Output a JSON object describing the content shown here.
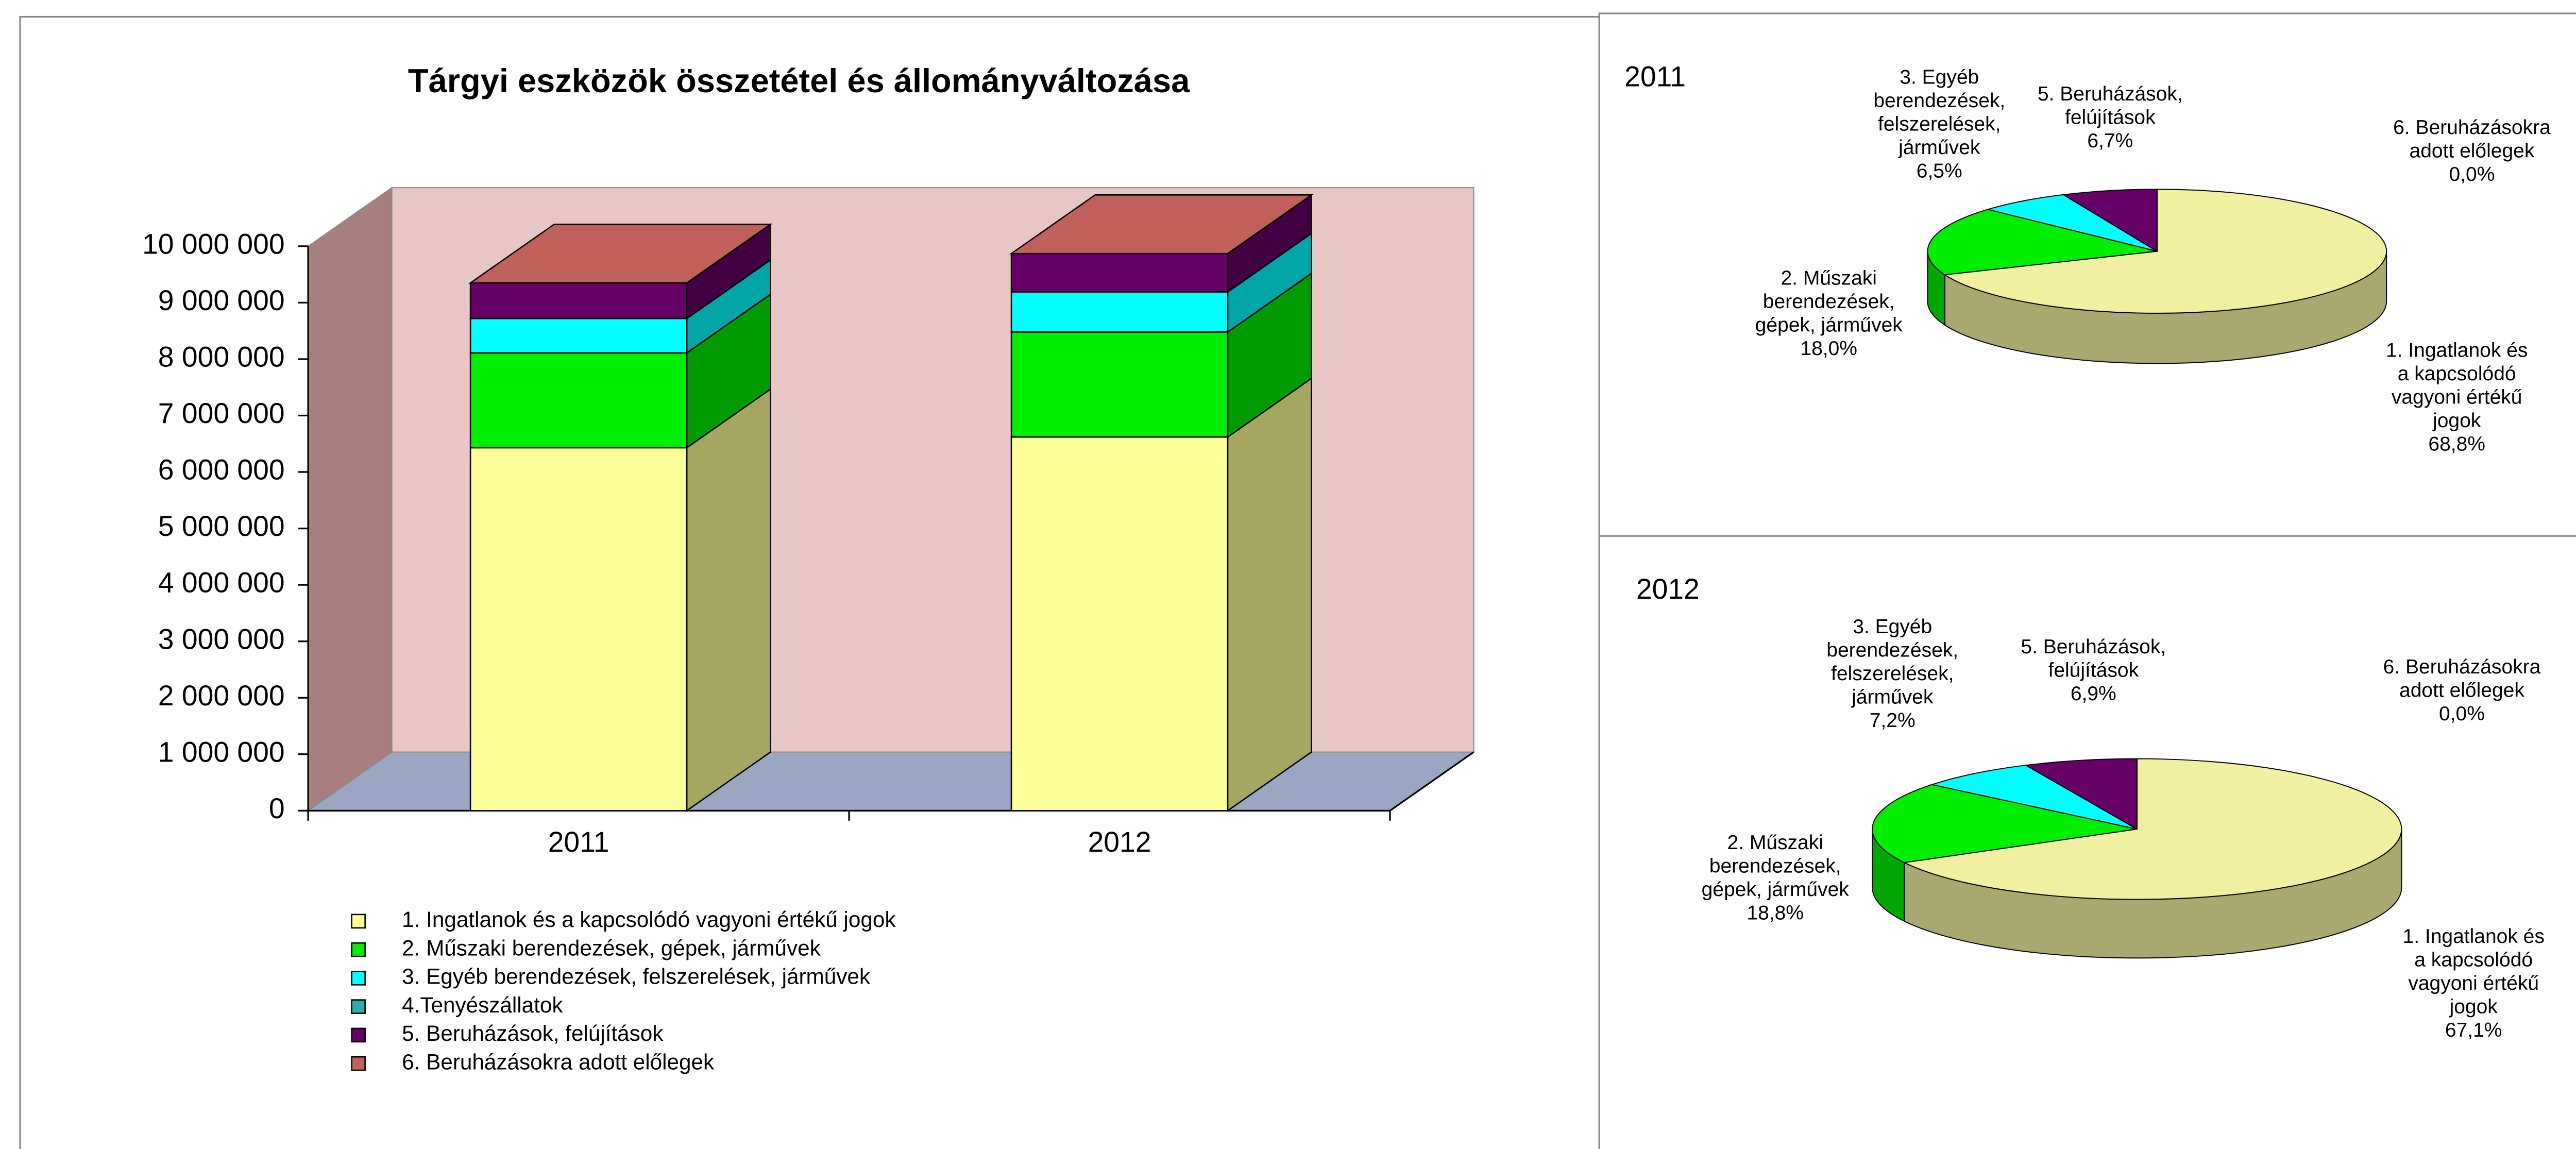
{
  "chart_data": [
    {
      "type": "bar3d",
      "title": "Tárgyi eszközök összetétel és állományváltozása",
      "categories": [
        "2011",
        "2012"
      ],
      "series": [
        {
          "name": "1. Ingatlanok és a kapcsolódó vagyoni értékű jogok",
          "color": "#ffff99",
          "values": [
            6430000,
            6620000
          ]
        },
        {
          "name": "2. Műszaki berendezések, gépek, járművek",
          "color": "#00ee00",
          "values": [
            1680000,
            1860000
          ]
        },
        {
          "name": "3. Egyéb berendezések, felszerelések, járművek",
          "color": "#00ffff",
          "values": [
            610000,
            710000
          ]
        },
        {
          "name": "4.Tenyészállatok",
          "color": "#33aaaa",
          "values": [
            0,
            0
          ]
        },
        {
          "name": "5. Beruházások, felújítások",
          "color": "#660066",
          "values": [
            630000,
            680000
          ]
        },
        {
          "name": "6. Beruházásokra adott előlegek",
          "color": "#c0605a",
          "values": [
            0,
            0
          ]
        }
      ],
      "ylim": [
        0,
        10000000
      ],
      "yticks": [
        0,
        {
          "value": 1000000,
          "label": "1 000 000"
        },
        {
          "value": 2000000,
          "label": "2 000 000"
        },
        {
          "value": 3000000,
          "label": "3 000 000"
        },
        {
          "value": 4000000,
          "label": "4 000 000"
        },
        {
          "value": 5000000,
          "label": "5 000 000"
        },
        {
          "value": 6000000,
          "label": "6 000 000"
        },
        {
          "value": 7000000,
          "label": "7 000 000"
        },
        {
          "value": 8000000,
          "label": "8 000 000"
        },
        {
          "value": 9000000,
          "label": "9 000 000"
        },
        {
          "value": 10000000,
          "label": "10 000 000"
        }
      ],
      "grid": false,
      "legend": "bottom"
    },
    {
      "type": "pie3d",
      "title": "2011",
      "categories": [
        "1. Ingatlanok és a kapcsolódó vagyoni értékű jogok",
        "2. Műszaki berendezések, gépek, járművek",
        "3. Egyéb berendezések, felszerelések, járművek",
        "5. Beruházások, felújítások",
        "6. Beruházásokra adott előlegek"
      ],
      "values": [
        68.8,
        18.0,
        6.5,
        6.7,
        0.0
      ],
      "value_labels": [
        "68,8%",
        "18,0%",
        "6,5%",
        "6,7%",
        "0,0%"
      ],
      "colors": [
        "#f0f0a0",
        "#00ee00",
        "#00ffff",
        "#660066",
        "#c0605a"
      ]
    },
    {
      "type": "pie3d",
      "title": "2012",
      "categories": [
        "1. Ingatlanok és a kapcsolódó vagyoni értékű jogok",
        "2. Műszaki berendezések, gépek, járművek",
        "3. Egyéb berendezések, felszerelések, járművek",
        "5. Beruházások, felújítások",
        "6. Beruházásokra adott előlegek"
      ],
      "values": [
        67.1,
        18.8,
        7.2,
        6.9,
        0.0
      ],
      "value_labels": [
        "67,1%",
        "18,8%",
        "7,2%",
        "6,9%",
        "0,0%"
      ],
      "colors": [
        "#f0f0a0",
        "#00ee00",
        "#00ffff",
        "#660066",
        "#c0605a"
      ]
    }
  ]
}
